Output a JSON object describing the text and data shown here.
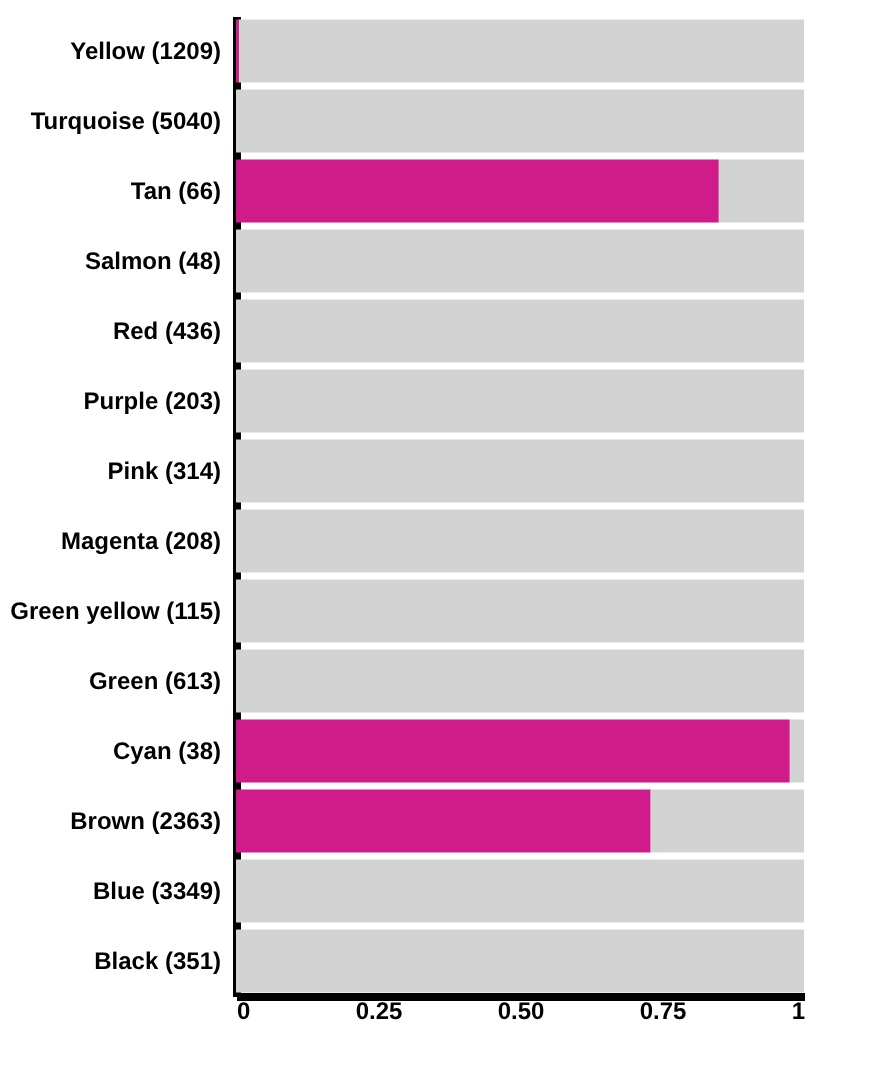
{
  "chart_data": {
    "type": "bar",
    "orientation": "horizontal",
    "stacked": true,
    "categories": [
      "Yellow (1209)",
      "Turquoise (5040)",
      "Tan (66)",
      "Salmon (48)",
      "Red (436)",
      "Purple (203)",
      "Pink (314)",
      "Magenta (208)",
      "Green yellow (115)",
      "Green (613)",
      "Cyan (38)",
      "Brown (2363)",
      "Blue (3349)",
      "Black (351)"
    ],
    "series": [
      {
        "color": "#d01c8b",
        "values": [
          0.005,
          0,
          0.85,
          0,
          0,
          0,
          0,
          0,
          0,
          0,
          0.975,
          0.73,
          0,
          0
        ]
      },
      {
        "color": "#d3d3d3",
        "values": [
          0.995,
          1,
          0.15,
          1,
          1,
          1,
          1,
          1,
          1,
          1,
          0.025,
          0.27,
          1,
          1
        ]
      }
    ],
    "xlim": [
      0,
      1
    ],
    "xticks": [
      0,
      0.25,
      {
        "value": 0.5,
        "label": "0.50"
      },
      0.75,
      1
    ],
    "grid": false,
    "legend": false
  }
}
